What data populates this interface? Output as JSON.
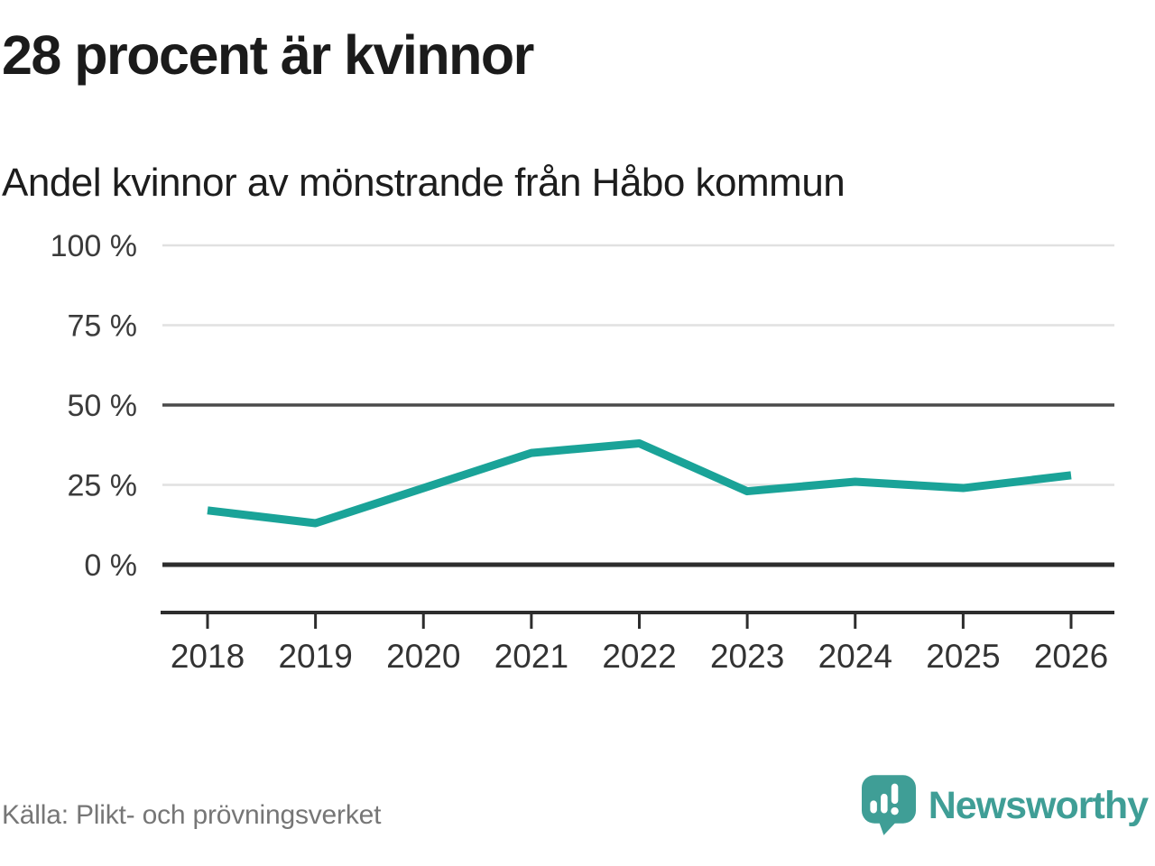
{
  "header": {
    "title": "28 procent är kvinnor",
    "subtitle": "Andel kvinnor av mönstrande från Håbo kommun"
  },
  "chart_data": {
    "type": "line",
    "title": "28 procent är kvinnor",
    "subtitle": "Andel kvinnor av mönstrande från Håbo kommun",
    "categories": [
      "2018",
      "2019",
      "2020",
      "2021",
      "2022",
      "2023",
      "2024",
      "2025",
      "2026"
    ],
    "series": [
      {
        "name": "Andel kvinnor av mönstrande",
        "color": "#1aa398",
        "values": [
          17,
          13,
          24,
          35,
          38,
          23,
          26,
          24,
          28
        ]
      }
    ],
    "unit": "%",
    "ylim": [
      0,
      100
    ],
    "yticks": [
      {
        "label": "0 %",
        "value": 0,
        "style": "strong"
      },
      {
        "label": "25 %",
        "value": 25,
        "style": "light"
      },
      {
        "label": "50 %",
        "value": 50,
        "style": "medium"
      },
      {
        "label": "75 %",
        "value": 75,
        "style": "light"
      },
      {
        "label": "100 %",
        "value": 100,
        "style": "light"
      }
    ],
    "grid": true,
    "legend": "none",
    "last_point_label": "28"
  },
  "footer": {
    "source": "Källa: Plikt- och prövningsverket",
    "brand": "Newsworthy",
    "brand_color": "#3f9e96",
    "icon": "speech-bubble-bar-chart-icon"
  }
}
